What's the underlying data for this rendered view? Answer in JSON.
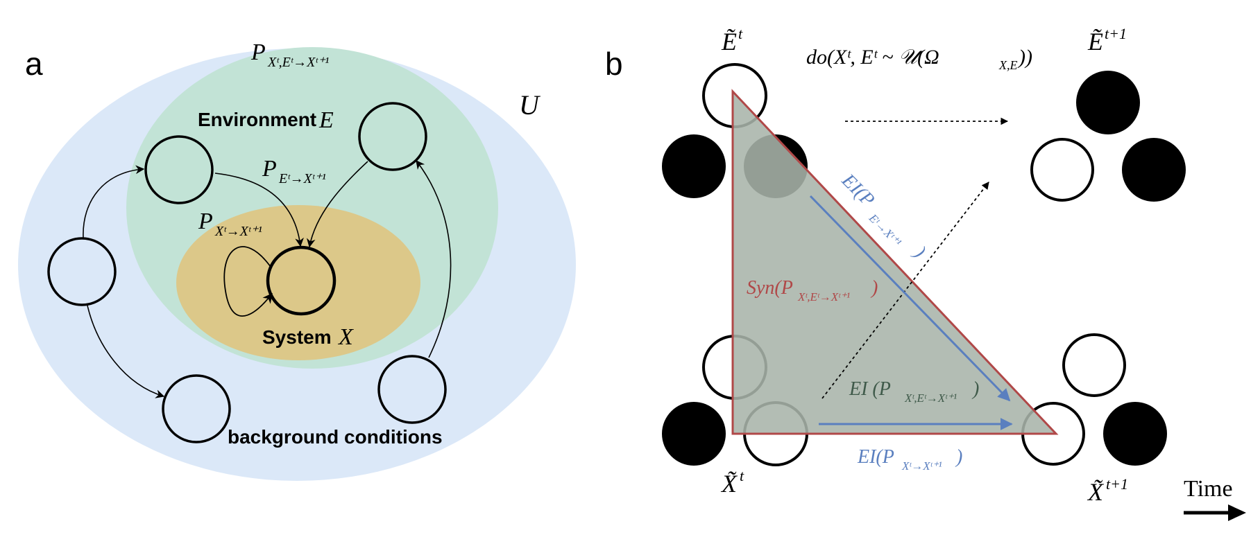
{
  "panel_a": {
    "letter": "a",
    "universe_label": "U",
    "environment_label": "Environment",
    "environment_var": "E",
    "system_label": "System",
    "system_var": "X",
    "background_label": "background conditions",
    "p_joint": {
      "base": "P",
      "sub": "Xᵗ,Eᵗ→Xᵗ⁺¹"
    },
    "p_env": {
      "base": "P",
      "sub": "Eᵗ→Xᵗ⁺¹"
    },
    "p_self": {
      "base": "P",
      "sub": "Xᵗ→Xᵗ⁺¹"
    },
    "colors": {
      "universe": "#dbe8f8",
      "environment": "#c2e3d6",
      "system": "#dcc889"
    }
  },
  "panel_b": {
    "letter": "b",
    "do_label": "do(Xᵗ, Eᵗ ~ 𝒰(Ω",
    "do_sub": "X,E",
    "do_close": "))",
    "e_t": {
      "base": "Ẽ",
      "sup": "t"
    },
    "e_t1": {
      "base": "Ẽ",
      "sup": "t+1"
    },
    "x_t": {
      "base": "X̃",
      "sup": "t"
    },
    "x_t1": {
      "base": "X̃",
      "sup": "t+1"
    },
    "ei_env": {
      "base": "EI(P",
      "sub": "Eᵗ→Xᵗ⁺¹",
      "close": ")"
    },
    "syn": {
      "base": "Syn(P",
      "sub": "Xᵗ,Eᵗ→Xᵗ⁺¹",
      "close": ")"
    },
    "ei_joint": {
      "base": "EI (P",
      "sub": "Xᵗ,Eᵗ→Xᵗ⁺¹",
      "close": ")"
    },
    "ei_self": {
      "base": "EI(P",
      "sub": "Xᵗ→Xᵗ⁺¹",
      "close": ")"
    },
    "time_label": "Time",
    "colors": {
      "triangle_fill": "#a9b4aa",
      "triangle_stroke": "#b04848",
      "blue": "#5a7fbf",
      "syn_red": "#b04848",
      "joint_green": "#3f5a4a"
    }
  }
}
